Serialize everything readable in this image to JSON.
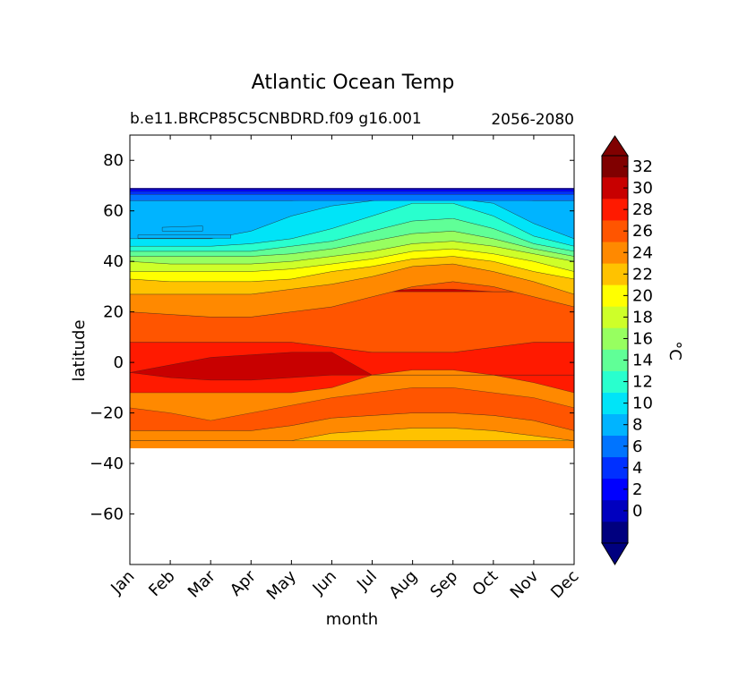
{
  "chart_data": {
    "type": "heatmap",
    "subtype": "filled-contour",
    "title": "Atlantic Ocean Temp",
    "subtitle_left": "b.e11.BRCP85C5CNBDRD.f09 g16.001",
    "subtitle_right": "2056-2080",
    "xlabel": "month",
    "ylabel": "latitude",
    "xlim": [
      0,
      11
    ],
    "ylim": [
      -80,
      90
    ],
    "x_ticks": [
      {
        "value": 0,
        "label": "Jan"
      },
      {
        "value": 1,
        "label": "Feb"
      },
      {
        "value": 2,
        "label": "Mar"
      },
      {
        "value": 3,
        "label": "Apr"
      },
      {
        "value": 4,
        "label": "May"
      },
      {
        "value": 5,
        "label": "Jun"
      },
      {
        "value": 6,
        "label": "Jul"
      },
      {
        "value": 7,
        "label": "Aug"
      },
      {
        "value": 8,
        "label": "Sep"
      },
      {
        "value": 9,
        "label": "Oct"
      },
      {
        "value": 10,
        "label": "Nov"
      },
      {
        "value": 11,
        "label": "Dec"
      }
    ],
    "y_ticks": [
      {
        "value": 80,
        "label": "80"
      },
      {
        "value": 60,
        "label": "60"
      },
      {
        "value": 40,
        "label": "40"
      },
      {
        "value": 20,
        "label": "20"
      },
      {
        "value": 0,
        "label": "0"
      },
      {
        "value": -20,
        "label": "−20"
      },
      {
        "value": -40,
        "label": "−40"
      },
      {
        "value": -60,
        "label": "−60"
      }
    ],
    "data_lat_range": [
      -34,
      69
    ],
    "colorbar": {
      "label": "°C",
      "levels": [
        -2,
        0,
        2,
        4,
        6,
        8,
        10,
        12,
        14,
        16,
        18,
        20,
        22,
        24,
        26,
        28,
        30,
        32,
        34
      ],
      "tick_values": [
        0,
        2,
        4,
        6,
        8,
        10,
        12,
        14,
        16,
        18,
        20,
        22,
        24,
        26,
        28,
        30,
        32
      ],
      "tick_labels": [
        "0",
        "2",
        "4",
        "6",
        "8",
        "10",
        "12",
        "14",
        "16",
        "18",
        "20",
        "22",
        "24",
        "26",
        "28",
        "30",
        "32"
      ],
      "colors": [
        "#00007f",
        "#0000bf",
        "#0000ff",
        "#0030ff",
        "#0074ff",
        "#00b4ff",
        "#00e4f8",
        "#29ffce",
        "#60ff97",
        "#97ff60",
        "#ceff29",
        "#ffff00",
        "#ffc200",
        "#ff8900",
        "#ff5500",
        "#ff1a00",
        "#c80000",
        "#800000"
      ],
      "under_color": "#00007f",
      "over_color": "#800000"
    },
    "contour_regions_note": "Approximate month-by-latitude temperature bands, read from the filled contours.",
    "bands": [
      {
        "range": "22-24",
        "boundaries": [
          [
            -31,
            -31
          ],
          [
            -31,
            -31
          ],
          [
            -31,
            -31
          ],
          [
            -31,
            -31
          ],
          [
            -31,
            -31
          ],
          [
            -31,
            -28
          ],
          [
            -31,
            -27
          ],
          [
            -31,
            -26
          ],
          [
            -31,
            -26
          ],
          [
            -31,
            -27
          ],
          [
            -31,
            -29
          ],
          [
            -31,
            -31
          ]
        ]
      },
      {
        "range": "24-26",
        "boundaries": [
          [
            -31,
            -27
          ],
          [
            -31,
            -27
          ],
          [
            -31,
            -27
          ],
          [
            -31,
            -27
          ],
          [
            -31,
            -25
          ],
          [
            -28,
            -22
          ],
          [
            -27,
            -21
          ],
          [
            -26,
            -20
          ],
          [
            -26,
            -20
          ],
          [
            -27,
            -21
          ],
          [
            -29,
            -23
          ],
          [
            -31,
            -27
          ]
        ]
      },
      {
        "range": "26-28",
        "boundaries": [
          [
            -27,
            -18
          ],
          [
            -27,
            -20
          ],
          [
            -27,
            -23
          ],
          [
            -27,
            -20
          ],
          [
            -25,
            -17
          ],
          [
            -22,
            -14
          ],
          [
            -21,
            -12
          ],
          [
            -20,
            -10
          ],
          [
            -20,
            -10
          ],
          [
            -21,
            -12
          ],
          [
            -23,
            -14
          ],
          [
            -27,
            -18
          ]
        ]
      },
      {
        "range": "28-30",
        "boundaries": [
          [
            -12,
            8
          ],
          [
            -12,
            8
          ],
          [
            -12,
            8
          ],
          [
            -12,
            8
          ],
          [
            -12,
            8
          ],
          [
            -10,
            6
          ],
          [
            -5,
            4
          ],
          [
            -3,
            4
          ],
          [
            -3,
            4
          ],
          [
            -5,
            6
          ],
          [
            -8,
            8
          ],
          [
            -12,
            8
          ]
        ]
      },
      {
        "range": "30-32",
        "boundaries": [
          [
            -4,
            -4
          ],
          [
            -6,
            -1
          ],
          [
            -7,
            2
          ],
          [
            -7,
            3
          ],
          [
            -6,
            4
          ],
          [
            -5,
            4
          ],
          [
            -5,
            -5
          ],
          [
            -5,
            -5
          ],
          [
            -5,
            -5
          ],
          [
            -5,
            -5
          ],
          [
            -5,
            -5
          ],
          [
            -5,
            -5
          ]
        ]
      },
      {
        "range": "26-28",
        "boundaries": [
          [
            8,
            20
          ],
          [
            8,
            19
          ],
          [
            8,
            18
          ],
          [
            8,
            18
          ],
          [
            8,
            20
          ],
          [
            6,
            22
          ],
          [
            4,
            26
          ],
          [
            4,
            30
          ],
          [
            4,
            32
          ],
          [
            6,
            30
          ],
          [
            8,
            26
          ],
          [
            8,
            22
          ]
        ]
      },
      {
        "range": "30-32",
        "boundaries": [
          [
            28,
            28
          ],
          [
            28,
            28
          ],
          [
            28,
            28
          ],
          [
            28,
            28
          ],
          [
            28,
            28
          ],
          [
            28,
            28
          ],
          [
            28,
            28
          ],
          [
            28,
            29
          ],
          [
            28,
            29
          ],
          [
            28,
            28
          ],
          [
            28,
            28
          ],
          [
            28,
            28
          ]
        ]
      },
      {
        "range": "24-26",
        "boundaries": [
          [
            20,
            27
          ],
          [
            19,
            27
          ],
          [
            18,
            27
          ],
          [
            18,
            27
          ],
          [
            20,
            29
          ],
          [
            22,
            31
          ],
          [
            26,
            34
          ],
          [
            30,
            38
          ],
          [
            32,
            39
          ],
          [
            30,
            36
          ],
          [
            26,
            32
          ],
          [
            22,
            27
          ]
        ]
      },
      {
        "range": "22-24",
        "boundaries": [
          [
            27,
            33
          ],
          [
            27,
            32
          ],
          [
            27,
            32
          ],
          [
            27,
            32
          ],
          [
            29,
            33
          ],
          [
            31,
            36
          ],
          [
            34,
            38
          ],
          [
            38,
            41
          ],
          [
            39,
            42
          ],
          [
            36,
            40
          ],
          [
            32,
            36
          ],
          [
            27,
            33
          ]
        ]
      },
      {
        "range": "20-22",
        "boundaries": [
          [
            33,
            36
          ],
          [
            32,
            36
          ],
          [
            32,
            36
          ],
          [
            32,
            36
          ],
          [
            33,
            37
          ],
          [
            36,
            39
          ],
          [
            38,
            41
          ],
          [
            41,
            44
          ],
          [
            42,
            45
          ],
          [
            40,
            43
          ],
          [
            36,
            40
          ],
          [
            33,
            36
          ]
        ]
      },
      {
        "range": "18-20",
        "boundaries": [
          [
            36,
            40
          ],
          [
            36,
            39
          ],
          [
            36,
            39
          ],
          [
            36,
            39
          ],
          [
            37,
            40
          ],
          [
            39,
            42
          ],
          [
            41,
            44
          ],
          [
            44,
            47
          ],
          [
            45,
            48
          ],
          [
            43,
            46
          ],
          [
            40,
            43
          ],
          [
            36,
            40
          ]
        ]
      },
      {
        "range": "16-18",
        "boundaries": [
          [
            40,
            42
          ],
          [
            39,
            42
          ],
          [
            39,
            42
          ],
          [
            39,
            42
          ],
          [
            40,
            43
          ],
          [
            42,
            45
          ],
          [
            44,
            48
          ],
          [
            47,
            51
          ],
          [
            48,
            52
          ],
          [
            46,
            49
          ],
          [
            43,
            45
          ],
          [
            40,
            42
          ]
        ]
      },
      {
        "range": "14-16",
        "boundaries": [
          [
            42,
            44
          ],
          [
            42,
            44
          ],
          [
            42,
            44
          ],
          [
            42,
            44
          ],
          [
            43,
            46
          ],
          [
            45,
            48
          ],
          [
            48,
            52
          ],
          [
            51,
            56
          ],
          [
            52,
            57
          ],
          [
            49,
            53
          ],
          [
            45,
            47
          ],
          [
            42,
            44
          ]
        ]
      },
      {
        "range": "12-14",
        "boundaries": [
          [
            44,
            46
          ],
          [
            44,
            46
          ],
          [
            44,
            46
          ],
          [
            44,
            47
          ],
          [
            46,
            49
          ],
          [
            48,
            53
          ],
          [
            52,
            58
          ],
          [
            56,
            63
          ],
          [
            57,
            63
          ],
          [
            53,
            58
          ],
          [
            47,
            50
          ],
          [
            44,
            46
          ]
        ]
      },
      {
        "range": "10-12",
        "boundaries": [
          [
            46,
            49
          ],
          [
            46,
            49
          ],
          [
            46,
            49
          ],
          [
            47,
            52
          ],
          [
            49,
            58
          ],
          [
            53,
            62
          ],
          [
            58,
            64
          ],
          [
            63,
            65
          ],
          [
            63,
            65
          ],
          [
            58,
            63
          ],
          [
            50,
            55
          ],
          [
            46,
            49
          ]
        ]
      },
      {
        "range": "8-10",
        "boundaries": [
          [
            49,
            64
          ],
          [
            49,
            64
          ],
          [
            49,
            64
          ],
          [
            52,
            64
          ],
          [
            58,
            64
          ],
          [
            62,
            65
          ],
          [
            64,
            66
          ],
          [
            65,
            66
          ],
          [
            65,
            66
          ],
          [
            63,
            65
          ],
          [
            55,
            64
          ],
          [
            49,
            64
          ]
        ]
      }
    ]
  }
}
